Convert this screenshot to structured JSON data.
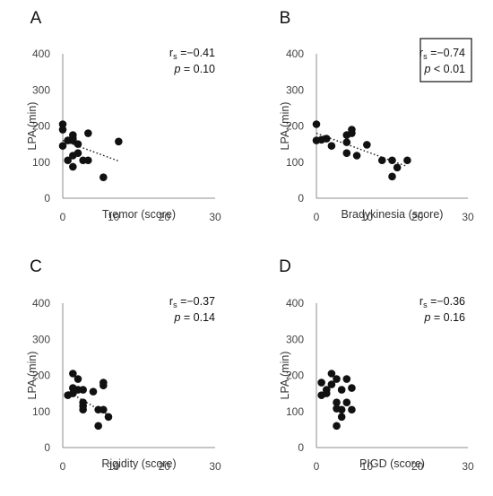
{
  "chart_data": [
    {
      "panel": "A",
      "type": "scatter",
      "xlabel": "Tremor (score)",
      "ylabel": "LPA (min)",
      "xlim": [
        0,
        30
      ],
      "ylim": [
        0,
        400
      ],
      "xticks": [
        "0",
        "10",
        "20",
        "30"
      ],
      "yticks": [
        "0",
        "100",
        "200",
        "300",
        "400"
      ],
      "rs_label": "r",
      "rs_sub": "s",
      "rs_value": " =−0.41",
      "p_label": "p",
      "p_value": " = 0.10",
      "boxed": false,
      "trend": {
        "x": [
          0,
          11
        ],
        "y": [
          160,
          103
        ]
      },
      "points": [
        {
          "x": 0,
          "y": 205
        },
        {
          "x": 0,
          "y": 190
        },
        {
          "x": 0,
          "y": 145
        },
        {
          "x": 1,
          "y": 160
        },
        {
          "x": 1,
          "y": 105
        },
        {
          "x": 2,
          "y": 175
        },
        {
          "x": 2,
          "y": 165
        },
        {
          "x": 2,
          "y": 160
        },
        {
          "x": 2,
          "y": 118
        },
        {
          "x": 2,
          "y": 87
        },
        {
          "x": 3,
          "y": 150
        },
        {
          "x": 3,
          "y": 125
        },
        {
          "x": 4,
          "y": 105
        },
        {
          "x": 5,
          "y": 180
        },
        {
          "x": 5,
          "y": 105
        },
        {
          "x": 8,
          "y": 58
        },
        {
          "x": 11,
          "y": 157
        }
      ]
    },
    {
      "panel": "B",
      "type": "scatter",
      "xlabel": "Bradykinesia  (score)",
      "ylabel": "LPA (min)",
      "xlim": [
        0,
        30
      ],
      "ylim": [
        0,
        400
      ],
      "xticks": [
        "0",
        "10",
        "20",
        "30"
      ],
      "yticks": [
        "0",
        "100",
        "200",
        "300",
        "400"
      ],
      "rs_label": "r",
      "rs_sub": "s",
      "rs_value": " =−0.74",
      "p_label": "p",
      "p_value": " < 0.01",
      "boxed": true,
      "trend": {
        "x": [
          0,
          18
        ],
        "y": [
          180,
          88
        ]
      },
      "points": [
        {
          "x": 0,
          "y": 205
        },
        {
          "x": 0,
          "y": 160
        },
        {
          "x": 1,
          "y": 162
        },
        {
          "x": 2,
          "y": 165
        },
        {
          "x": 3,
          "y": 145
        },
        {
          "x": 6,
          "y": 175
        },
        {
          "x": 6,
          "y": 155
        },
        {
          "x": 6,
          "y": 125
        },
        {
          "x": 7,
          "y": 190
        },
        {
          "x": 7,
          "y": 180
        },
        {
          "x": 8,
          "y": 118
        },
        {
          "x": 10,
          "y": 148
        },
        {
          "x": 13,
          "y": 105
        },
        {
          "x": 15,
          "y": 105
        },
        {
          "x": 15,
          "y": 60
        },
        {
          "x": 16,
          "y": 85
        },
        {
          "x": 18,
          "y": 105
        }
      ]
    },
    {
      "panel": "C",
      "type": "scatter",
      "xlabel": "Rigidity  (score)",
      "ylabel": "LPA (min)",
      "xlim": [
        0,
        30
      ],
      "ylim": [
        0,
        400
      ],
      "xticks": [
        "0",
        "10",
        "20",
        "30"
      ],
      "yticks": [
        "0",
        "100",
        "200",
        "300",
        "400"
      ],
      "rs_label": "r",
      "rs_sub": "s",
      "rs_value": " =−0.37",
      "p_label": "p",
      "p_value": " = 0.14",
      "boxed": false,
      "trend": {
        "x": [
          1,
          9
        ],
        "y": [
          155,
          90
        ]
      },
      "points": [
        {
          "x": 1,
          "y": 145
        },
        {
          "x": 2,
          "y": 205
        },
        {
          "x": 2,
          "y": 165
        },
        {
          "x": 2,
          "y": 150
        },
        {
          "x": 3,
          "y": 190
        },
        {
          "x": 3,
          "y": 160
        },
        {
          "x": 4,
          "y": 160
        },
        {
          "x": 4,
          "y": 125
        },
        {
          "x": 4,
          "y": 115
        },
        {
          "x": 4,
          "y": 105
        },
        {
          "x": 6,
          "y": 155
        },
        {
          "x": 7,
          "y": 105
        },
        {
          "x": 7,
          "y": 60
        },
        {
          "x": 8,
          "y": 180
        },
        {
          "x": 8,
          "y": 172
        },
        {
          "x": 8,
          "y": 105
        },
        {
          "x": 9,
          "y": 85
        }
      ]
    },
    {
      "panel": "D",
      "type": "scatter",
      "xlabel": "PIGD (score)",
      "ylabel": "LPA (min)",
      "xlim": [
        0,
        30
      ],
      "ylim": [
        0,
        400
      ],
      "xticks": [
        "0",
        "10",
        "20",
        "30"
      ],
      "yticks": [
        "0",
        "100",
        "200",
        "300",
        "400"
      ],
      "rs_label": "r",
      "rs_sub": "s",
      "rs_value": " =−0.36",
      "p_label": "p",
      "p_value": " = 0.16",
      "boxed": false,
      "trend": null,
      "points": [
        {
          "x": 1,
          "y": 180
        },
        {
          "x": 1,
          "y": 145
        },
        {
          "x": 2,
          "y": 160
        },
        {
          "x": 2,
          "y": 150
        },
        {
          "x": 3,
          "y": 205
        },
        {
          "x": 3,
          "y": 175
        },
        {
          "x": 4,
          "y": 190
        },
        {
          "x": 4,
          "y": 125
        },
        {
          "x": 4,
          "y": 108
        },
        {
          "x": 4,
          "y": 60
        },
        {
          "x": 5,
          "y": 160
        },
        {
          "x": 5,
          "y": 105
        },
        {
          "x": 5,
          "y": 85
        },
        {
          "x": 6,
          "y": 125
        },
        {
          "x": 7,
          "y": 165
        },
        {
          "x": 7,
          "y": 105
        },
        {
          "x": 6,
          "y": 190
        }
      ]
    }
  ]
}
